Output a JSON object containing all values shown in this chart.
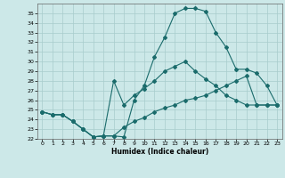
{
  "xlabel": "Humidex (Indice chaleur)",
  "xlim": [
    -0.5,
    23.5
  ],
  "ylim": [
    22,
    36
  ],
  "yticks": [
    22,
    23,
    24,
    25,
    26,
    27,
    28,
    29,
    30,
    31,
    32,
    33,
    34,
    35
  ],
  "xticks": [
    0,
    1,
    2,
    3,
    4,
    5,
    6,
    7,
    8,
    9,
    10,
    11,
    12,
    13,
    14,
    15,
    16,
    17,
    18,
    19,
    20,
    21,
    22,
    23
  ],
  "background_color": "#cce8e8",
  "grid_color": "#a8cccc",
  "line_color": "#1a6b6b",
  "line1_x": [
    0,
    1,
    2,
    3,
    4,
    5,
    6,
    7,
    8,
    9,
    10,
    11,
    12,
    13,
    14,
    15,
    16,
    17,
    18,
    19,
    20,
    21,
    22,
    23
  ],
  "line1_y": [
    24.8,
    24.5,
    24.5,
    23.8,
    23.0,
    22.2,
    22.3,
    22.3,
    22.2,
    26.0,
    27.5,
    30.5,
    32.5,
    35.0,
    35.5,
    35.5,
    35.2,
    33.0,
    31.5,
    29.2,
    29.2,
    28.8,
    27.5,
    25.5
  ],
  "line2_x": [
    0,
    1,
    2,
    3,
    4,
    5,
    6,
    7,
    8,
    9,
    10,
    11,
    12,
    13,
    14,
    15,
    16,
    17,
    18,
    19,
    20,
    21,
    22,
    23
  ],
  "line2_y": [
    24.8,
    24.5,
    24.5,
    23.8,
    23.0,
    22.2,
    22.3,
    28.0,
    25.5,
    26.5,
    27.2,
    28.0,
    29.0,
    29.5,
    30.0,
    29.0,
    28.2,
    27.5,
    26.5,
    26.0,
    25.5,
    25.5,
    25.5,
    25.5
  ],
  "line3_x": [
    0,
    1,
    2,
    3,
    4,
    5,
    6,
    7,
    8,
    9,
    10,
    11,
    12,
    13,
    14,
    15,
    16,
    17,
    18,
    19,
    20,
    21,
    22,
    23
  ],
  "line3_y": [
    24.8,
    24.5,
    24.5,
    23.8,
    23.0,
    22.2,
    22.3,
    22.3,
    23.2,
    23.8,
    24.2,
    24.8,
    25.2,
    25.5,
    26.0,
    26.2,
    26.5,
    27.0,
    27.5,
    28.0,
    28.5,
    25.5,
    25.5,
    25.5
  ]
}
